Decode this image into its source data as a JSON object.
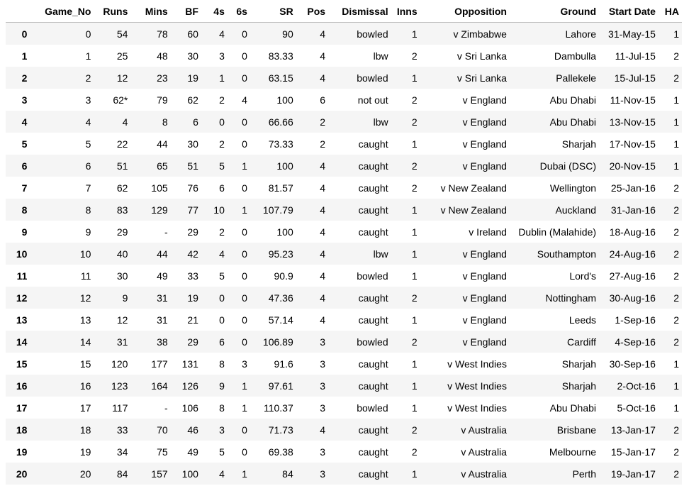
{
  "table": {
    "columns": [
      "",
      "Game_No",
      "Runs",
      "Mins",
      "BF",
      "4s",
      "6s",
      "SR",
      "Pos",
      "Dismissal",
      "Inns",
      "Opposition",
      "Ground",
      "Start Date",
      "HA"
    ],
    "rows": [
      [
        "0",
        "0",
        "54",
        "78",
        "60",
        "4",
        "0",
        "90",
        "4",
        "bowled",
        "1",
        "v Zimbabwe",
        "Lahore",
        "31-May-15",
        "1"
      ],
      [
        "1",
        "1",
        "25",
        "48",
        "30",
        "3",
        "0",
        "83.33",
        "4",
        "lbw",
        "2",
        "v Sri Lanka",
        "Dambulla",
        "11-Jul-15",
        "2"
      ],
      [
        "2",
        "2",
        "12",
        "23",
        "19",
        "1",
        "0",
        "63.15",
        "4",
        "bowled",
        "1",
        "v Sri Lanka",
        "Pallekele",
        "15-Jul-15",
        "2"
      ],
      [
        "3",
        "3",
        "62*",
        "79",
        "62",
        "2",
        "4",
        "100",
        "6",
        "not out",
        "2",
        "v England",
        "Abu Dhabi",
        "11-Nov-15",
        "1"
      ],
      [
        "4",
        "4",
        "4",
        "8",
        "6",
        "0",
        "0",
        "66.66",
        "2",
        "lbw",
        "2",
        "v England",
        "Abu Dhabi",
        "13-Nov-15",
        "1"
      ],
      [
        "5",
        "5",
        "22",
        "44",
        "30",
        "2",
        "0",
        "73.33",
        "2",
        "caught",
        "1",
        "v England",
        "Sharjah",
        "17-Nov-15",
        "1"
      ],
      [
        "6",
        "6",
        "51",
        "65",
        "51",
        "5",
        "1",
        "100",
        "4",
        "caught",
        "2",
        "v England",
        "Dubai (DSC)",
        "20-Nov-15",
        "1"
      ],
      [
        "7",
        "7",
        "62",
        "105",
        "76",
        "6",
        "0",
        "81.57",
        "4",
        "caught",
        "2",
        "v New Zealand",
        "Wellington",
        "25-Jan-16",
        "2"
      ],
      [
        "8",
        "8",
        "83",
        "129",
        "77",
        "10",
        "1",
        "107.79",
        "4",
        "caught",
        "1",
        "v New Zealand",
        "Auckland",
        "31-Jan-16",
        "2"
      ],
      [
        "9",
        "9",
        "29",
        "-",
        "29",
        "2",
        "0",
        "100",
        "4",
        "caught",
        "1",
        "v Ireland",
        "Dublin (Malahide)",
        "18-Aug-16",
        "2"
      ],
      [
        "10",
        "10",
        "40",
        "44",
        "42",
        "4",
        "0",
        "95.23",
        "4",
        "lbw",
        "1",
        "v England",
        "Southampton",
        "24-Aug-16",
        "2"
      ],
      [
        "11",
        "11",
        "30",
        "49",
        "33",
        "5",
        "0",
        "90.9",
        "4",
        "bowled",
        "1",
        "v England",
        "Lord's",
        "27-Aug-16",
        "2"
      ],
      [
        "12",
        "12",
        "9",
        "31",
        "19",
        "0",
        "0",
        "47.36",
        "4",
        "caught",
        "2",
        "v England",
        "Nottingham",
        "30-Aug-16",
        "2"
      ],
      [
        "13",
        "13",
        "12",
        "31",
        "21",
        "0",
        "0",
        "57.14",
        "4",
        "caught",
        "1",
        "v England",
        "Leeds",
        "1-Sep-16",
        "2"
      ],
      [
        "14",
        "14",
        "31",
        "38",
        "29",
        "6",
        "0",
        "106.89",
        "3",
        "bowled",
        "2",
        "v England",
        "Cardiff",
        "4-Sep-16",
        "2"
      ],
      [
        "15",
        "15",
        "120",
        "177",
        "131",
        "8",
        "3",
        "91.6",
        "3",
        "caught",
        "1",
        "v West Indies",
        "Sharjah",
        "30-Sep-16",
        "1"
      ],
      [
        "16",
        "16",
        "123",
        "164",
        "126",
        "9",
        "1",
        "97.61",
        "3",
        "caught",
        "1",
        "v West Indies",
        "Sharjah",
        "2-Oct-16",
        "1"
      ],
      [
        "17",
        "17",
        "117",
        "-",
        "106",
        "8",
        "1",
        "110.37",
        "3",
        "bowled",
        "1",
        "v West Indies",
        "Abu Dhabi",
        "5-Oct-16",
        "1"
      ],
      [
        "18",
        "18",
        "33",
        "70",
        "46",
        "3",
        "0",
        "71.73",
        "4",
        "caught",
        "2",
        "v Australia",
        "Brisbane",
        "13-Jan-17",
        "2"
      ],
      [
        "19",
        "19",
        "34",
        "75",
        "49",
        "5",
        "0",
        "69.38",
        "3",
        "caught",
        "2",
        "v Australia",
        "Melbourne",
        "15-Jan-17",
        "2"
      ],
      [
        "20",
        "20",
        "84",
        "157",
        "100",
        "4",
        "1",
        "84",
        "3",
        "caught",
        "1",
        "v Australia",
        "Perth",
        "19-Jan-17",
        "2"
      ]
    ]
  }
}
